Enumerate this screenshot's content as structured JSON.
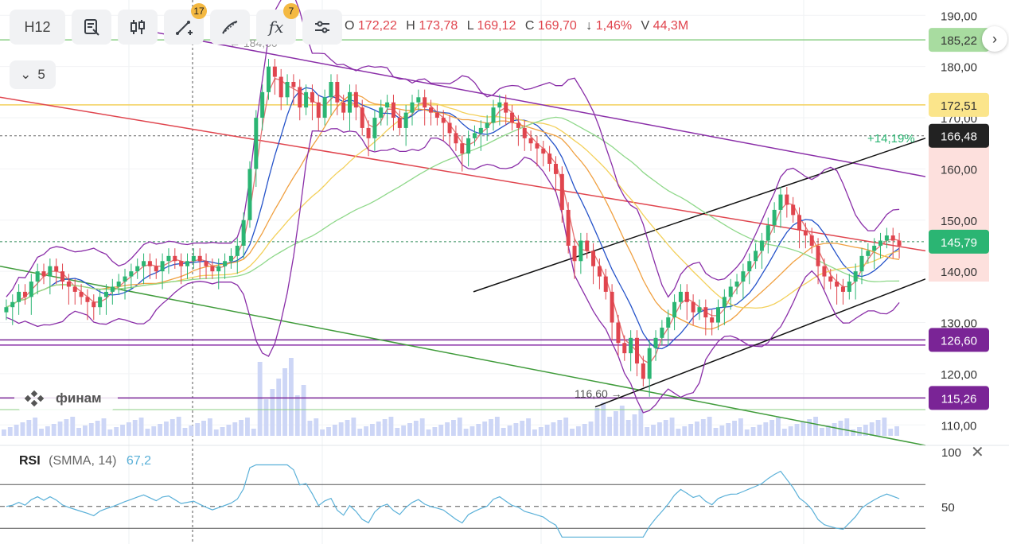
{
  "toolbar": {
    "interval_label": "H12",
    "indicators_badge": "17",
    "functions_badge": "7",
    "fx_label": "fx"
  },
  "ohlc": {
    "o_label": "O",
    "o": "172,22",
    "h_label": "H",
    "h": "173,78",
    "l_label": "L",
    "l": "169,12",
    "c_label": "C",
    "c": "169,70",
    "change_arrow": "↓",
    "change": "1,46%",
    "v_label": "V",
    "v": "44,3M"
  },
  "collapse": {
    "label": "5"
  },
  "logo": {
    "text": "финам"
  },
  "rsi": {
    "name": "RSI",
    "params": "(SMMA, 14)",
    "value": "67,2"
  },
  "colors": {
    "up": "#2bb573",
    "down": "#e0454e",
    "purple": "#8a2ea8",
    "blue": "#2452c9",
    "orange": "#f0a040",
    "yellow": "#f3d05a",
    "green": "#3f9b3a",
    "red": "#e0454e",
    "volume": "#cdd6f6",
    "rsi": "#5ab0d8"
  },
  "chart_data": {
    "type": "candlestick",
    "y_axis": {
      "range": [
        106,
        193
      ],
      "ticks": [
        "190,00",
        "180,00",
        "170,00",
        "160,00",
        "150,00",
        "140,00",
        "130,00",
        "120,00",
        "110,00"
      ],
      "tick_values": [
        190,
        180,
        170,
        160,
        150,
        140,
        130,
        120,
        110
      ]
    },
    "price_levels": [
      {
        "value": 185.22,
        "label": "185,22",
        "color": "#a8dca0",
        "text_color": "#333333",
        "line": "#8ccf86"
      },
      {
        "value": 172.51,
        "label": "172,51",
        "color": "#fbe58b",
        "text_color": "#333333",
        "line": "#f3d05a"
      },
      {
        "value": 166.48,
        "label": "166,48",
        "color": "#222222",
        "text_color": "#ffffff",
        "line": "#666666"
      },
      {
        "value": 145.79,
        "label": "145,79",
        "color": "#2bb573",
        "text_color": "#ffffff",
        "line": "#2e8b57"
      },
      {
        "value": 126.6,
        "label": "126,60",
        "color": "#7a2496",
        "text_color": "#ffffff",
        "line": "#7a2496"
      },
      {
        "value": 115.26,
        "label": "115,26",
        "color": "#7a2496",
        "text_color": "#ffffff",
        "line": "#7a2496"
      }
    ],
    "annotations": [
      {
        "text": "← 184,80",
        "color": "#999999"
      },
      {
        "text": "+14,19%",
        "color": "#2bb573"
      },
      {
        "text": "116,60 →",
        "color": "#555555"
      }
    ],
    "candles_close": [
      133,
      134,
      136,
      135,
      138,
      140,
      139,
      141,
      140,
      138,
      137,
      136,
      135,
      134,
      133,
      135,
      136,
      137,
      138,
      139,
      140,
      141,
      142,
      141,
      140,
      142,
      143,
      142,
      141,
      142,
      143,
      142,
      141,
      140,
      141,
      142,
      143,
      145,
      150,
      160,
      170,
      175,
      180,
      178,
      174,
      177,
      176,
      172,
      175,
      173,
      170,
      174,
      177,
      173,
      171,
      175,
      172,
      168,
      166,
      170,
      172,
      173,
      170,
      168,
      171,
      173,
      174,
      172,
      171,
      170,
      169,
      167,
      165,
      163,
      166,
      167,
      168,
      169,
      172,
      173,
      171,
      169,
      168,
      166,
      165,
      164,
      163,
      161,
      159,
      152,
      145,
      142,
      146,
      144,
      141,
      139,
      136,
      130,
      126,
      124,
      127,
      122,
      119,
      125,
      127,
      129,
      131,
      134,
      136,
      134,
      132,
      133,
      131,
      130,
      133,
      135,
      137,
      138,
      140,
      142,
      144,
      146,
      149,
      152,
      155,
      153,
      151,
      148,
      147,
      145,
      141,
      139,
      138,
      137,
      136,
      138,
      140,
      143,
      144,
      145,
      146,
      147,
      146,
      145
    ]
  }
}
